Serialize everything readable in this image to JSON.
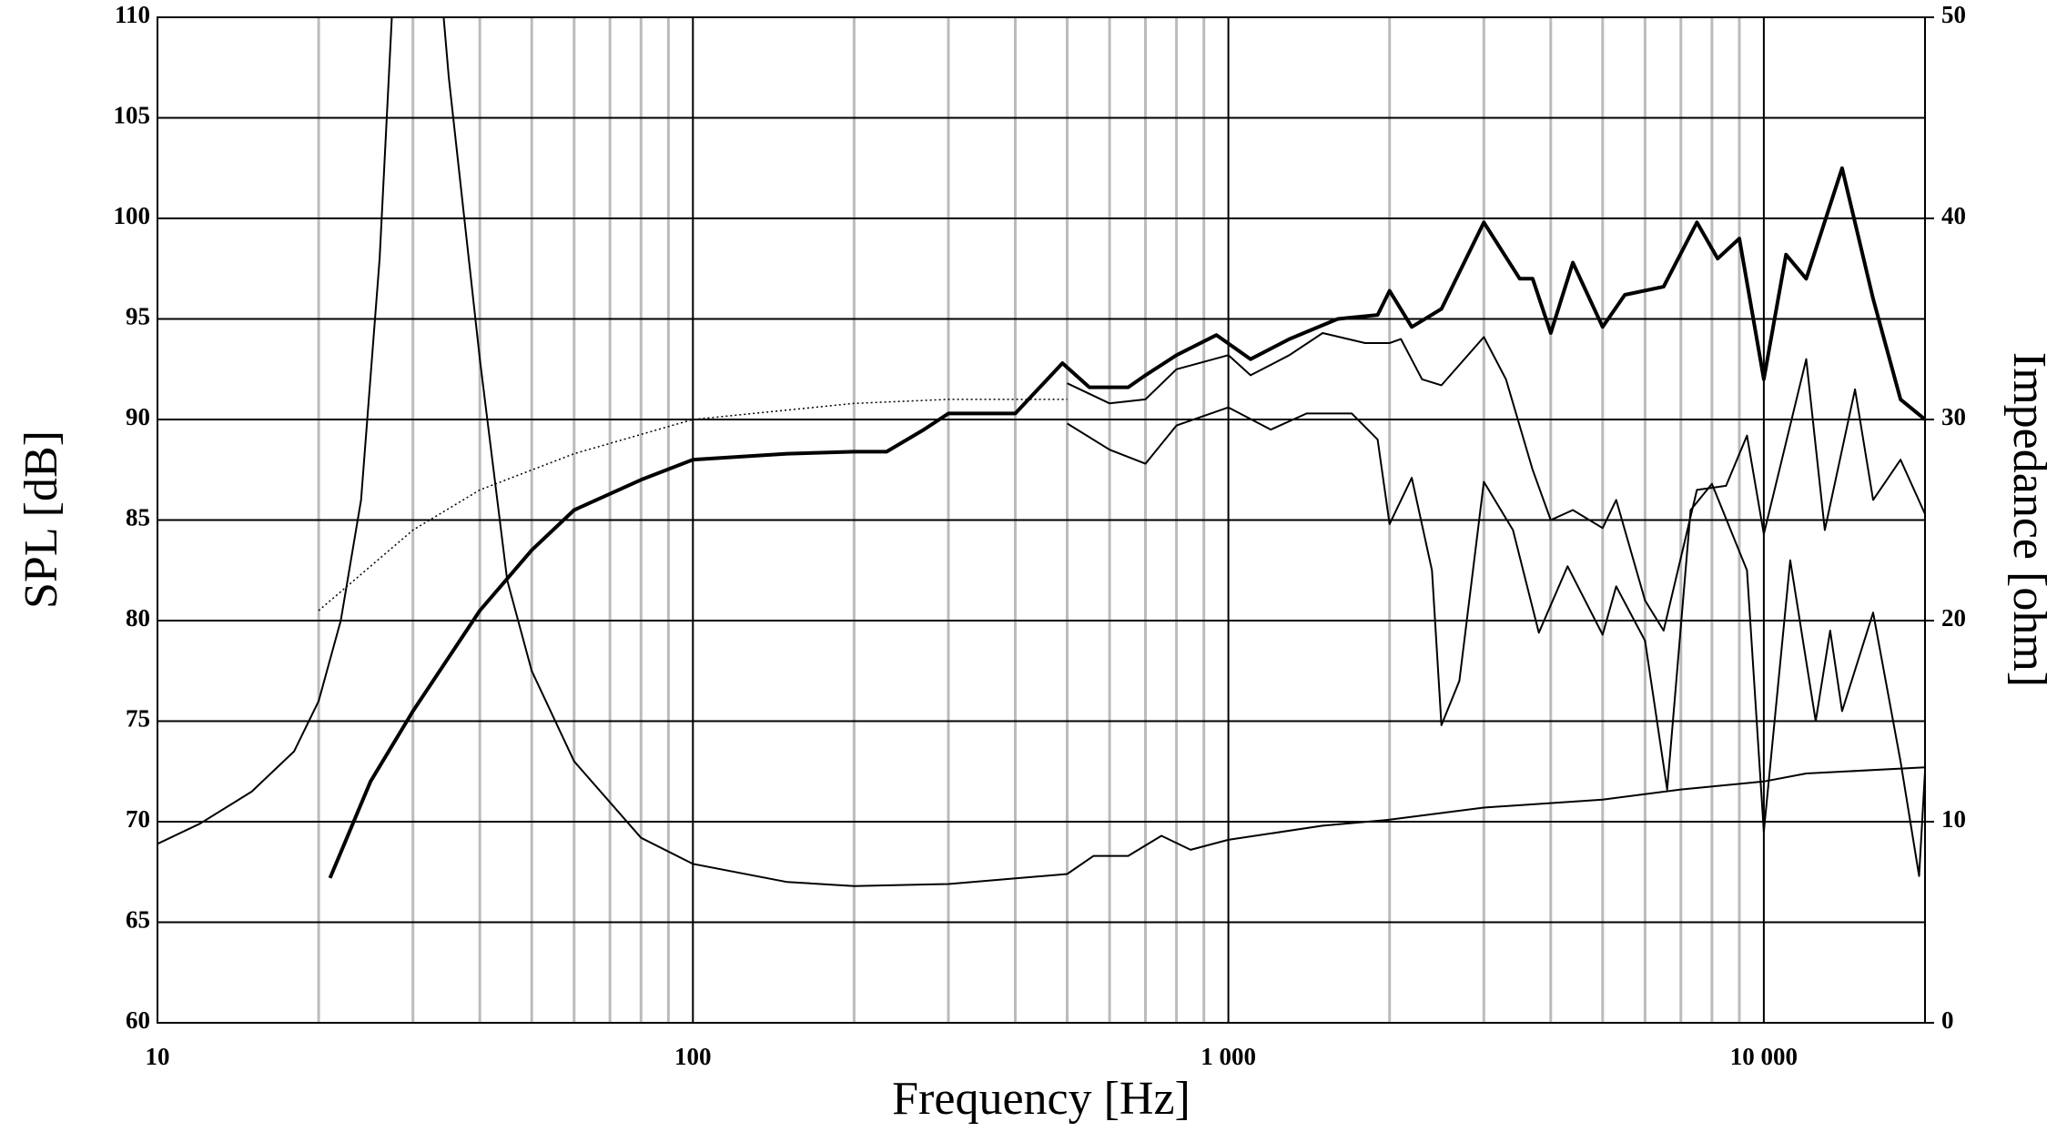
{
  "chart_data": {
    "type": "line",
    "xlabel": "Frequency [Hz]",
    "ylabel": "SPL [dB]",
    "y2label": "Impedance [ohm]",
    "xscale": "log",
    "grid": true,
    "xlim": [
      10,
      20000
    ],
    "ylim": [
      60,
      110
    ],
    "y2lim": [
      0,
      50
    ],
    "xticks": [
      10,
      100,
      {
        "value": 1000,
        "label": "1 000"
      },
      {
        "value": 10000,
        "label": "10 000"
      }
    ],
    "x_minor_grid": [
      20,
      30,
      40,
      50,
      60,
      70,
      80,
      90,
      200,
      300,
      400,
      500,
      600,
      700,
      800,
      900,
      2000,
      3000,
      4000,
      5000,
      6000,
      7000,
      8000,
      9000
    ],
    "yticks": [
      60,
      65,
      70,
      75,
      80,
      85,
      90,
      95,
      100,
      105,
      110
    ],
    "y2ticks": [
      0,
      10,
      20,
      30,
      40,
      50
    ],
    "series": [
      {
        "color": "#000000",
        "width": 4,
        "style": "solid",
        "x": [
          21,
          25,
          30,
          40,
          50,
          60,
          80,
          100,
          150,
          200,
          230,
          270,
          300,
          400,
          490,
          550,
          650,
          700,
          800,
          950,
          1100,
          1300,
          1600,
          1900,
          2000,
          2200,
          2500,
          3000,
          3500,
          3700,
          4000,
          4400,
          5000,
          5500,
          6500,
          7500,
          8200,
          9000,
          10000,
          11000,
          12000,
          14000,
          16000,
          18000,
          20000
        ],
        "values": [
          67.2,
          72,
          75.5,
          80.5,
          83.5,
          85.5,
          87,
          88,
          88.3,
          88.4,
          88.4,
          89.5,
          90.3,
          90.3,
          92.8,
          91.6,
          91.6,
          92.2,
          93.2,
          94.2,
          93,
          94,
          95,
          95.2,
          96.4,
          94.6,
          95.5,
          99.8,
          97,
          97,
          94.3,
          97.8,
          94.6,
          96.2,
          96.6,
          99.8,
          98,
          99,
          92,
          98.2,
          97,
          102.5,
          96,
          91,
          90
        ]
      },
      {
        "color": "#000000",
        "width": 2,
        "style": "solid",
        "x": [
          500,
          600,
          700,
          800,
          1000,
          1100,
          1300,
          1500,
          1800,
          2000,
          2100,
          2300,
          2500,
          3000,
          3300,
          3700,
          4000,
          4400,
          5000,
          5300,
          6000,
          6500,
          7500,
          8500,
          9300,
          10000,
          12000,
          13000,
          14800,
          16000,
          18000,
          20000
        ],
        "values": [
          91.8,
          90.8,
          91,
          92.5,
          93.2,
          92.2,
          93.2,
          94.3,
          93.8,
          93.8,
          94,
          92,
          91.7,
          94.1,
          92,
          87.5,
          85,
          85.5,
          84.6,
          86,
          81,
          79.5,
          86.5,
          86.7,
          89.2,
          84.3,
          93,
          84.5,
          91.5,
          86,
          88,
          85.3
        ]
      },
      {
        "color": "#000000",
        "width": 2,
        "style": "solid",
        "x": [
          500,
          600,
          700,
          800,
          1000,
          1200,
          1400,
          1700,
          1900,
          2000,
          2200,
          2400,
          2500,
          2700,
          3000,
          3400,
          3800,
          4300,
          5000,
          5300,
          6000,
          6600,
          7300,
          8000,
          9300,
          10000,
          11200,
          12500,
          13300,
          14000,
          16000,
          18000,
          19500,
          20000
        ],
        "values": [
          89.8,
          88.5,
          87.8,
          89.7,
          90.6,
          89.5,
          90.3,
          90.3,
          89,
          84.8,
          87.1,
          82.5,
          74.8,
          77,
          86.9,
          84.5,
          79.4,
          82.7,
          79.3,
          81.7,
          79,
          71.6,
          85.5,
          86.8,
          82.5,
          69.5,
          83,
          75,
          79.5,
          75.5,
          80.4,
          73,
          67.3,
          72.5
        ]
      },
      {
        "color": "#000000",
        "width": 1.5,
        "style": "dotted",
        "x": [
          20,
          30,
          40,
          60,
          100,
          200,
          300,
          500
        ],
        "values": [
          80.5,
          84.5,
          86.5,
          88.3,
          90,
          90.8,
          91,
          91
        ]
      },
      {
        "color": "#000000",
        "width": 2,
        "style": "solid",
        "axis": "y2",
        "x": [
          10,
          12,
          15,
          18,
          20,
          22,
          24,
          26,
          28,
          33,
          35,
          40,
          45,
          50,
          60,
          80,
          100,
          150,
          200,
          300,
          500,
          560,
          650,
          750,
          850,
          1000,
          1500,
          2000,
          3000,
          5000,
          7000,
          10000,
          12000,
          20000
        ],
        "values": [
          8.9,
          9.9,
          11.5,
          13.5,
          16,
          20,
          26,
          38,
          55,
          55,
          47,
          33,
          22,
          17.5,
          13,
          9.2,
          7.9,
          7,
          6.8,
          6.9,
          7.4,
          8.3,
          8.3,
          9.3,
          8.6,
          9.1,
          9.8,
          10.1,
          10.7,
          11.1,
          11.6,
          12,
          12.4,
          12.7
        ]
      }
    ]
  }
}
